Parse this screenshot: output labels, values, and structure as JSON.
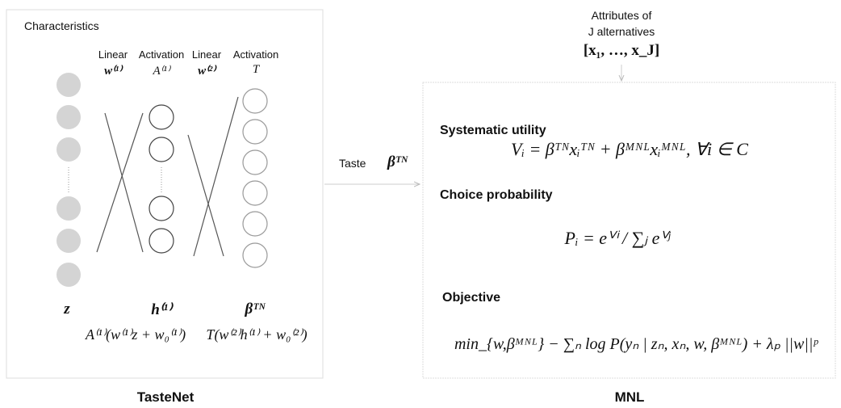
{
  "tastenet": {
    "section_title": "Characteristics",
    "headers": [
      {
        "layer": "Linear",
        "symbol": "w⁽¹⁾"
      },
      {
        "layer": "Activation",
        "symbol": "A⁽¹⁾"
      },
      {
        "layer": "Linear",
        "symbol": "w⁽²⁾"
      },
      {
        "layer": "Activation",
        "symbol": "T"
      }
    ],
    "bottom_labels": [
      "z",
      "h⁽¹⁾",
      "βᵀᴺ"
    ],
    "formulas": [
      "A⁽¹⁾(w⁽¹⁾z + w₀⁽¹⁾)",
      "T(w⁽²⁾h⁽¹⁾ + w₀⁽²⁾)"
    ],
    "caption": "TasteNet"
  },
  "connector": {
    "label": "Taste",
    "symbol": "βᵀᴺ"
  },
  "attributes": {
    "lines": [
      "Attributes of",
      "J alternatives",
      "[x₁, …, x_J]"
    ]
  },
  "mnl": {
    "sections": [
      {
        "heading": "Systematic utility",
        "formula": "Vᵢ = βᵀᴺxᵢᵀᴺ + βᴹᴺᴸxᵢᴹᴺᴸ, ∀i ∈ C"
      },
      {
        "heading": "Choice probability",
        "formula": "Pᵢ = eⱽⁱ / ∑ⱼ eⱽʲ"
      },
      {
        "heading": "Objective",
        "formula": "min_{w,βᴹᴺᴸ} − ∑ₙ log P(yₙ | zₙ, xₙ, w, βᴹᴺᴸ) + λₚ ||w||ᵖ"
      }
    ],
    "caption": "MNL"
  }
}
